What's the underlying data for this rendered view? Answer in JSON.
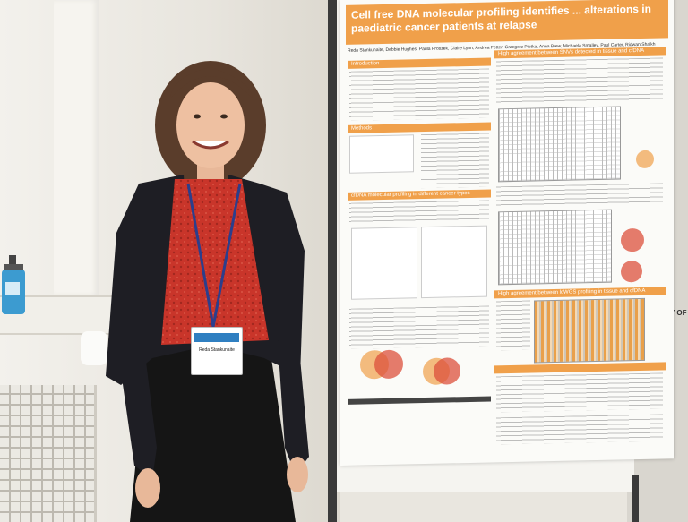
{
  "poster": {
    "title": "Cell free DNA molecular profiling identifies ... alterations in paediatric cancer patients at relapse",
    "authors": "Reda Stankunaite, Debbie Hughes, Paula Proszek, Claire Lynn, Andrea Fetter, Grzegorz Pietka, Anna Brew, Michaela Smalley, Paul Carter, Ridwan Shaikh",
    "sections": {
      "introduction": "Introduction",
      "methods": "Methods",
      "results_head": "High agreement between SNVs detected in tissue and cfDNA",
      "cfdna_profiling": "cfDNA molecular profiling in different cancer types",
      "wgs_head": "High agreement between lcWGS profiling in tissue and cfDNA"
    }
  },
  "badge": {
    "header": "",
    "name": "Reda Stankunaite",
    "affiliation": ""
  },
  "edge_sign": "Y OF"
}
